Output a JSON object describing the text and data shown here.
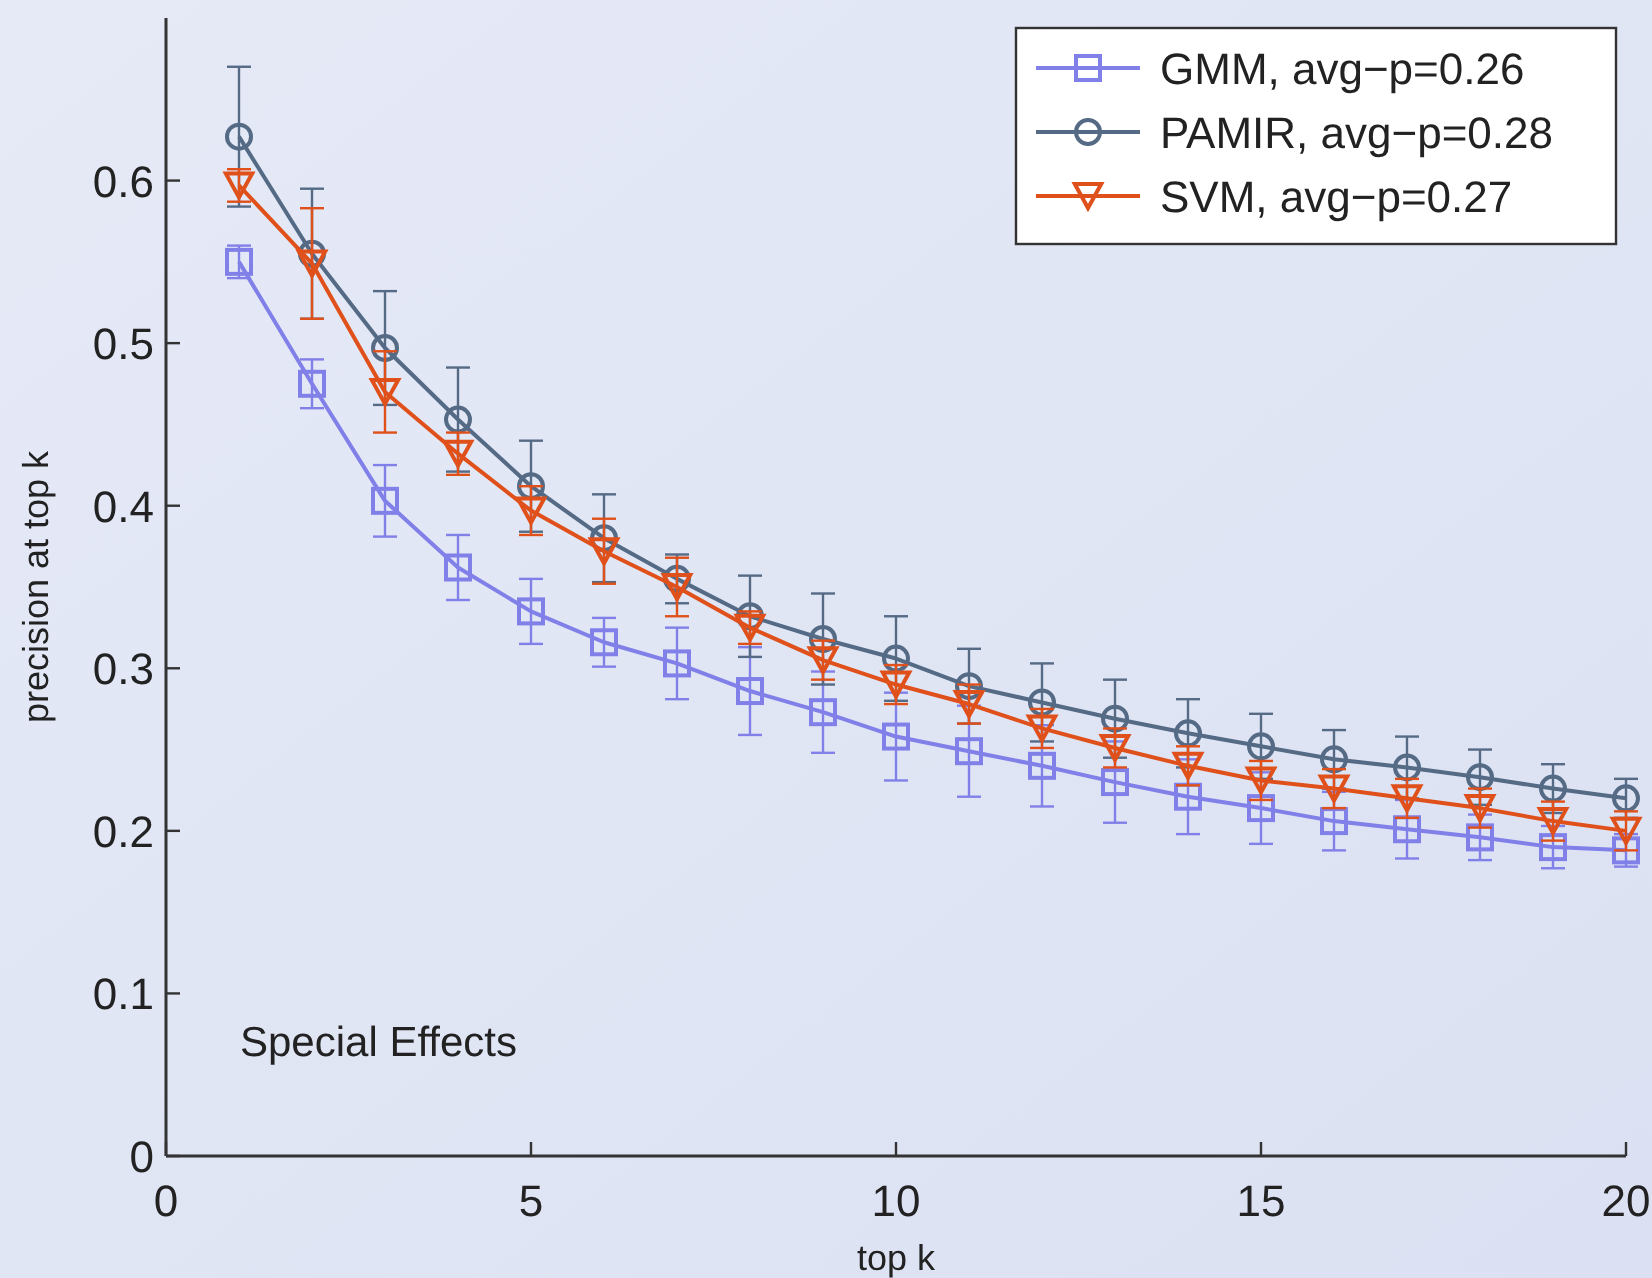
{
  "chart_data": {
    "type": "line",
    "xlabel": "top k",
    "ylabel": "precision at top k",
    "annotations": [
      "Special Effects"
    ],
    "x": [
      1,
      2,
      3,
      4,
      5,
      6,
      7,
      8,
      9,
      10,
      11,
      12,
      13,
      14,
      15,
      16,
      17,
      18,
      19,
      20
    ],
    "xlim": [
      0,
      20
    ],
    "xticks": [
      0,
      5,
      10,
      15,
      20
    ],
    "ylim": [
      0,
      0.7
    ],
    "yticks": [
      0,
      0.1,
      0.2,
      0.3,
      0.4,
      0.5,
      0.6
    ],
    "grid": false,
    "legend": "top right",
    "line_style": "solid",
    "series": [
      {
        "name": "GMM, avg−p=0.26",
        "color": "#8080e8",
        "marker": "square",
        "values": [
          0.55,
          0.475,
          0.403,
          0.362,
          0.335,
          0.316,
          0.303,
          0.286,
          0.273,
          0.258,
          0.249,
          0.24,
          0.23,
          0.221,
          0.214,
          0.206,
          0.201,
          0.196,
          0.19,
          0.188
        ],
        "errors": [
          0.01,
          0.015,
          0.022,
          0.02,
          0.02,
          0.015,
          0.022,
          0.027,
          0.025,
          0.027,
          0.028,
          0.025,
          0.025,
          0.023,
          0.022,
          0.018,
          0.018,
          0.014,
          0.013,
          0.01
        ]
      },
      {
        "name": "PAMIR, avg−p=0.28",
        "color": "#556a85",
        "marker": "circle",
        "values": [
          0.627,
          0.555,
          0.497,
          0.453,
          0.412,
          0.38,
          0.355,
          0.332,
          0.318,
          0.306,
          0.289,
          0.279,
          0.269,
          0.26,
          0.252,
          0.244,
          0.239,
          0.233,
          0.226,
          0.22
        ],
        "errors": [
          0.043,
          0.04,
          0.035,
          0.032,
          0.028,
          0.027,
          0.015,
          0.025,
          0.028,
          0.026,
          0.023,
          0.024,
          0.024,
          0.021,
          0.02,
          0.018,
          0.019,
          0.017,
          0.015,
          0.012
        ]
      },
      {
        "name": "SVM, avg−p=0.27",
        "color": "#e0501a",
        "marker": "triangle",
        "values": [
          0.597,
          0.549,
          0.47,
          0.432,
          0.397,
          0.372,
          0.35,
          0.325,
          0.305,
          0.29,
          0.278,
          0.263,
          0.251,
          0.24,
          0.231,
          0.226,
          0.22,
          0.214,
          0.206,
          0.2
        ],
        "errors": [
          0.01,
          0.034,
          0.025,
          0.013,
          0.015,
          0.02,
          0.018,
          0.01,
          0.012,
          0.012,
          0.012,
          0.012,
          0.012,
          0.012,
          0.012,
          0.012,
          0.012,
          0.012,
          0.012,
          0.012
        ]
      }
    ]
  }
}
